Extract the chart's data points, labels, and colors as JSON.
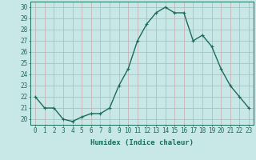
{
  "x": [
    0,
    1,
    2,
    3,
    4,
    5,
    6,
    7,
    8,
    9,
    10,
    11,
    12,
    13,
    14,
    15,
    16,
    17,
    18,
    19,
    20,
    21,
    22,
    23
  ],
  "y": [
    22,
    21,
    21,
    20,
    19.8,
    20.2,
    20.5,
    20.5,
    21,
    23,
    24.5,
    27,
    28.5,
    29.5,
    30,
    29.5,
    29.5,
    27,
    27.5,
    26.5,
    24.5,
    23,
    22,
    21
  ],
  "line_color": "#1a6b5a",
  "marker": "+",
  "marker_size": 3,
  "bg_color": "#c8e8e8",
  "grid_color": "#c8aab0",
  "xlabel": "Humidex (Indice chaleur)",
  "ylim": [
    19.5,
    30.5
  ],
  "xlim": [
    -0.5,
    23.5
  ],
  "yticks": [
    20,
    21,
    22,
    23,
    24,
    25,
    26,
    27,
    28,
    29,
    30
  ],
  "xticks": [
    0,
    1,
    2,
    3,
    4,
    5,
    6,
    7,
    8,
    9,
    10,
    11,
    12,
    13,
    14,
    15,
    16,
    17,
    18,
    19,
    20,
    21,
    22,
    23
  ],
  "xlabel_fontsize": 6.5,
  "tick_fontsize": 5.5,
  "line_width": 1.0
}
